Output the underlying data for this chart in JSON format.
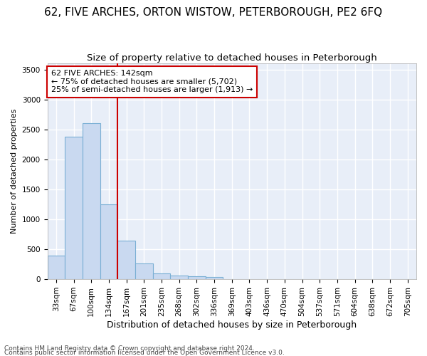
{
  "title": "62, FIVE ARCHES, ORTON WISTOW, PETERBOROUGH, PE2 6FQ",
  "subtitle": "Size of property relative to detached houses in Peterborough",
  "xlabel": "Distribution of detached houses by size in Peterborough",
  "ylabel": "Number of detached properties",
  "footnote1": "Contains HM Land Registry data © Crown copyright and database right 2024.",
  "footnote2": "Contains public sector information licensed under the Open Government Licence v3.0.",
  "categories": [
    "33sqm",
    "67sqm",
    "100sqm",
    "134sqm",
    "167sqm",
    "201sqm",
    "235sqm",
    "268sqm",
    "302sqm",
    "336sqm",
    "369sqm",
    "403sqm",
    "436sqm",
    "470sqm",
    "504sqm",
    "537sqm",
    "571sqm",
    "604sqm",
    "638sqm",
    "672sqm",
    "705sqm"
  ],
  "values": [
    390,
    2380,
    2600,
    1250,
    640,
    260,
    100,
    60,
    50,
    40,
    0,
    0,
    0,
    0,
    0,
    0,
    0,
    0,
    0,
    0,
    0
  ],
  "bar_color": "#c9d9f0",
  "bar_edge_color": "#7aafd4",
  "vline_color": "#cc0000",
  "vline_x_index": 3,
  "annotation_text": "62 FIVE ARCHES: 142sqm\n← 75% of detached houses are smaller (5,702)\n25% of semi-detached houses are larger (1,913) →",
  "annotation_box_facecolor": "white",
  "annotation_box_edgecolor": "#cc0000",
  "ylim": [
    0,
    3600
  ],
  "yticks": [
    0,
    500,
    1000,
    1500,
    2000,
    2500,
    3000,
    3500
  ],
  "fig_facecolor": "#ffffff",
  "plot_facecolor": "#e8eef8",
  "grid_color": "#ffffff",
  "title_fontsize": 11,
  "subtitle_fontsize": 9.5,
  "xlabel_fontsize": 9,
  "ylabel_fontsize": 8,
  "tick_fontsize": 7.5,
  "footnote_fontsize": 6.5,
  "annot_fontsize": 8
}
